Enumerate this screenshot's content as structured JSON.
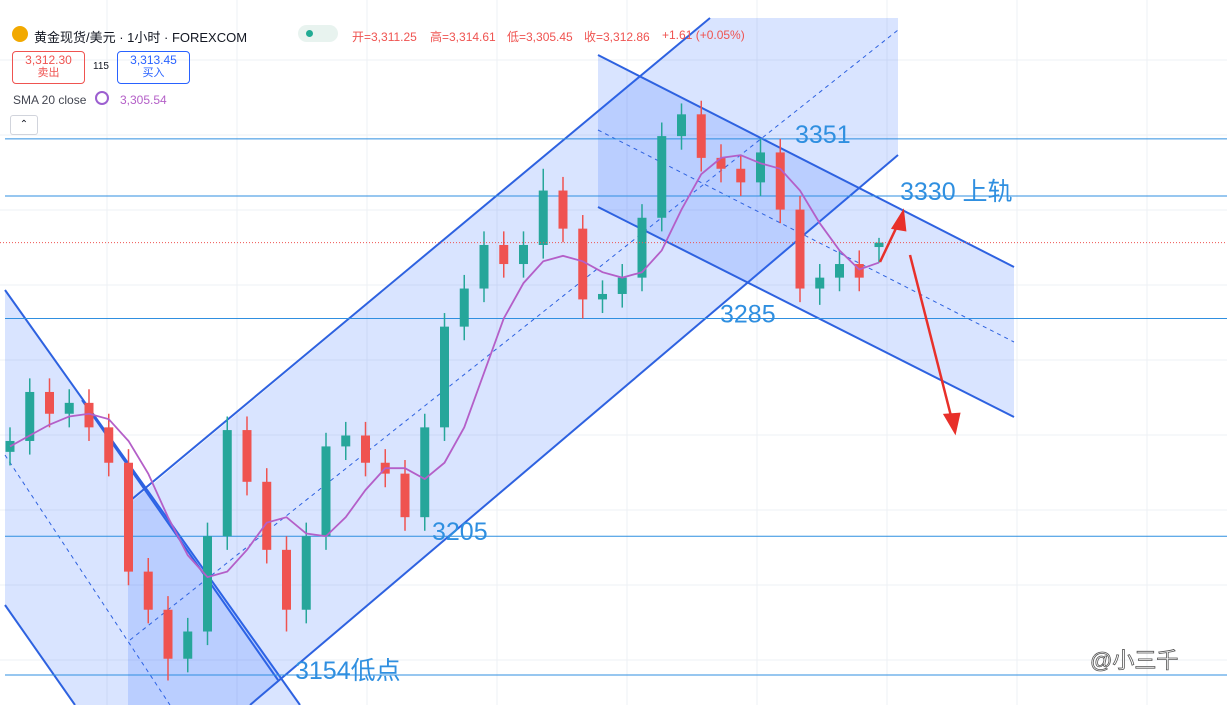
{
  "header": {
    "symbol": "黄金现货/美元 · 1小时 · FOREXCOM",
    "ohlc": [
      "开=3,311.25",
      "高=3,314.61",
      "低=3,305.45",
      "收=3,312.86"
    ],
    "change": "+1.61 (+0.05%)",
    "sell_price": "3,312.30",
    "sell_label": "卖出",
    "spread": "115",
    "buy_price": "3,313.45",
    "buy_label": "买入",
    "indicator": "SMA 20 close",
    "indicator_value": "3,305.54"
  },
  "watermark": "@小三千",
  "chart_data": {
    "type": "candlestick",
    "ylim": [
      3143,
      3402
    ],
    "up_color": "#26a69a",
    "down_color": "#ef5350",
    "open": [
      3236,
      3240,
      3258,
      3250,
      3254,
      3245,
      3232,
      3192,
      3178,
      3160,
      3170,
      3205,
      3244,
      3225,
      3200,
      3178,
      3205,
      3238,
      3242,
      3232,
      3228,
      3212,
      3245,
      3282,
      3296,
      3312,
      3305,
      3312,
      3332,
      3318,
      3292,
      3294,
      3300,
      3322,
      3352,
      3360,
      3344,
      3340,
      3335,
      3346,
      3325,
      3296,
      3300,
      3305,
      3311.25
    ],
    "high": [
      3245,
      3263,
      3263,
      3259,
      3259,
      3250,
      3237,
      3197,
      3183,
      3175,
      3210,
      3249,
      3249,
      3230,
      3205,
      3210,
      3243,
      3247,
      3247,
      3237,
      3233,
      3250,
      3287,
      3301,
      3317,
      3317,
      3317,
      3340,
      3337,
      3323,
      3299,
      3305,
      3327,
      3357,
      3364,
      3365,
      3349,
      3345,
      3351,
      3351,
      3330,
      3305,
      3310,
      3310,
      3314.61
    ],
    "low": [
      3231,
      3235,
      3245,
      3245,
      3240,
      3227,
      3187,
      3173,
      3152,
      3155,
      3165,
      3200,
      3220,
      3195,
      3170,
      3173,
      3200,
      3233,
      3227,
      3223,
      3207,
      3207,
      3240,
      3277,
      3291,
      3300,
      3300,
      3307,
      3313,
      3285,
      3287,
      3289,
      3295,
      3317,
      3347,
      3339,
      3335,
      3330,
      3330,
      3320,
      3291,
      3290,
      3295,
      3295,
      3305.45
    ],
    "close": [
      3240,
      3258,
      3250,
      3254,
      3245,
      3232,
      3192,
      3178,
      3160,
      3170,
      3205,
      3244,
      3225,
      3200,
      3178,
      3205,
      3238,
      3242,
      3232,
      3228,
      3212,
      3245,
      3282,
      3296,
      3312,
      3305,
      3312,
      3332,
      3318,
      3292,
      3294,
      3300,
      3322,
      3352,
      3360,
      3344,
      3340,
      3335,
      3346,
      3325,
      3296,
      3300,
      3305,
      3300,
      3312.86
    ],
    "sma": {
      "name": "SMA 20 close",
      "color": "#b45fc8",
      "values": [
        3238,
        3242,
        3246,
        3249,
        3250,
        3248,
        3240,
        3228,
        3212,
        3198,
        3190,
        3192,
        3200,
        3210,
        3212,
        3206,
        3205,
        3212,
        3222,
        3230,
        3230,
        3226,
        3232,
        3245,
        3265,
        3285,
        3298,
        3306,
        3308,
        3306,
        3302,
        3300,
        3302,
        3310,
        3325,
        3338,
        3344,
        3345,
        3342,
        3340,
        3332,
        3320,
        3310,
        3303,
        3305.54
      ]
    },
    "level_color": "#2f8fe0",
    "levels": [
      {
        "value": 3351,
        "label": "3351"
      },
      {
        "value": 3330,
        "label": "3330 上轨"
      },
      {
        "value": 3285,
        "label": "3285"
      },
      {
        "value": 3205,
        "label": "3205"
      },
      {
        "value": 3154,
        "label": "3154低点"
      }
    ]
  }
}
